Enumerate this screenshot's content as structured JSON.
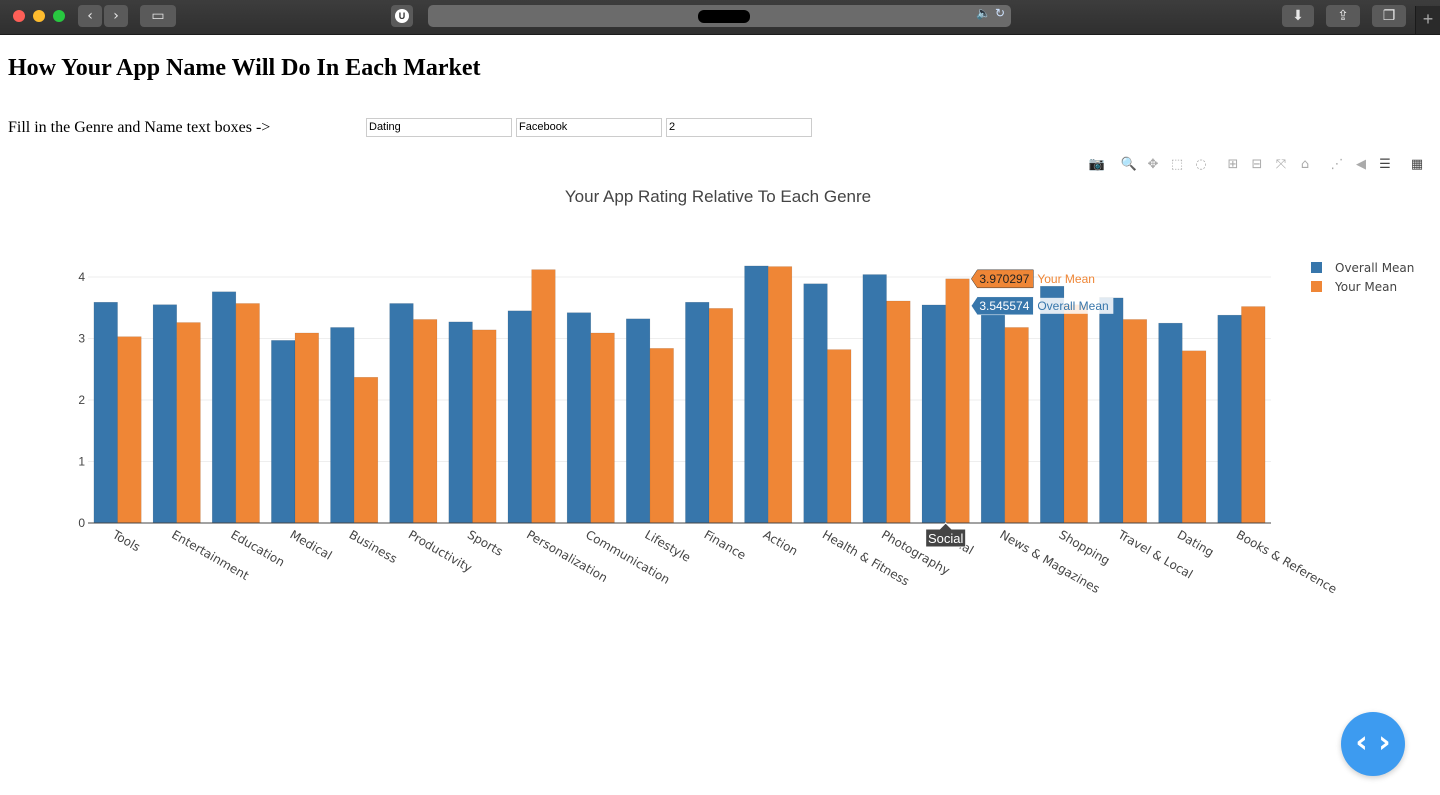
{
  "browser": {
    "back_icon": "chevron-left-icon",
    "forward_icon": "chevron-right-icon",
    "sidebar_icon": "sidebar-icon",
    "extension_label": "U",
    "new_tab_label": "+"
  },
  "page": {
    "heading": "How Your App Name Will Do In Each Market",
    "fill_label": "Fill in the Genre and Name text boxes ->",
    "inputs": {
      "genre": "Dating",
      "name": "Facebook",
      "number": "2"
    }
  },
  "modebar": [
    "camera-icon",
    "zoom-icon",
    "pan-icon",
    "box-select-icon",
    "lasso-icon",
    "zoom-in-icon",
    "zoom-out-icon",
    "autoscale-icon",
    "reset-axes-icon",
    "spike-lines-icon",
    "hover-closest-icon",
    "hover-compare-icon",
    "plotly-logo-icon"
  ],
  "chart_data": {
    "type": "bar",
    "title": "Your App Rating Relative To Each Genre",
    "categories": [
      "Tools",
      "Entertainment",
      "Education",
      "Medical",
      "Business",
      "Productivity",
      "Sports",
      "Personalization",
      "Communication",
      "Lifestyle",
      "Finance",
      "Action",
      "Health & Fitness",
      "Photography",
      "Social",
      "News & Magazines",
      "Shopping",
      "Travel & Local",
      "Dating",
      "Books & Reference"
    ],
    "series": [
      {
        "name": "Overall Mean",
        "color": "#3776ab",
        "values": [
          3.59,
          3.55,
          3.76,
          2.97,
          3.18,
          3.57,
          3.27,
          3.45,
          3.42,
          3.32,
          3.59,
          4.18,
          3.89,
          4.04,
          3.545574,
          3.45,
          3.85,
          3.66,
          3.25,
          3.38
        ]
      },
      {
        "name": "Your Mean",
        "color": "#ef8636",
        "values": [
          3.03,
          3.26,
          3.57,
          3.09,
          2.37,
          3.31,
          3.14,
          4.12,
          3.09,
          2.84,
          3.49,
          4.17,
          2.82,
          3.61,
          3.970297,
          3.18,
          3.55,
          3.31,
          2.8,
          3.52
        ]
      }
    ],
    "ylim": [
      0,
      4.4
    ],
    "yticks": [
      0,
      1,
      2,
      3,
      4
    ],
    "legend_position": "top-right",
    "hover": {
      "category": "Social",
      "your_mean_value": "3.970297",
      "your_mean_label": "Your Mean",
      "overall_mean_value": "3.545574",
      "overall_mean_label": "Overall Mean"
    }
  }
}
